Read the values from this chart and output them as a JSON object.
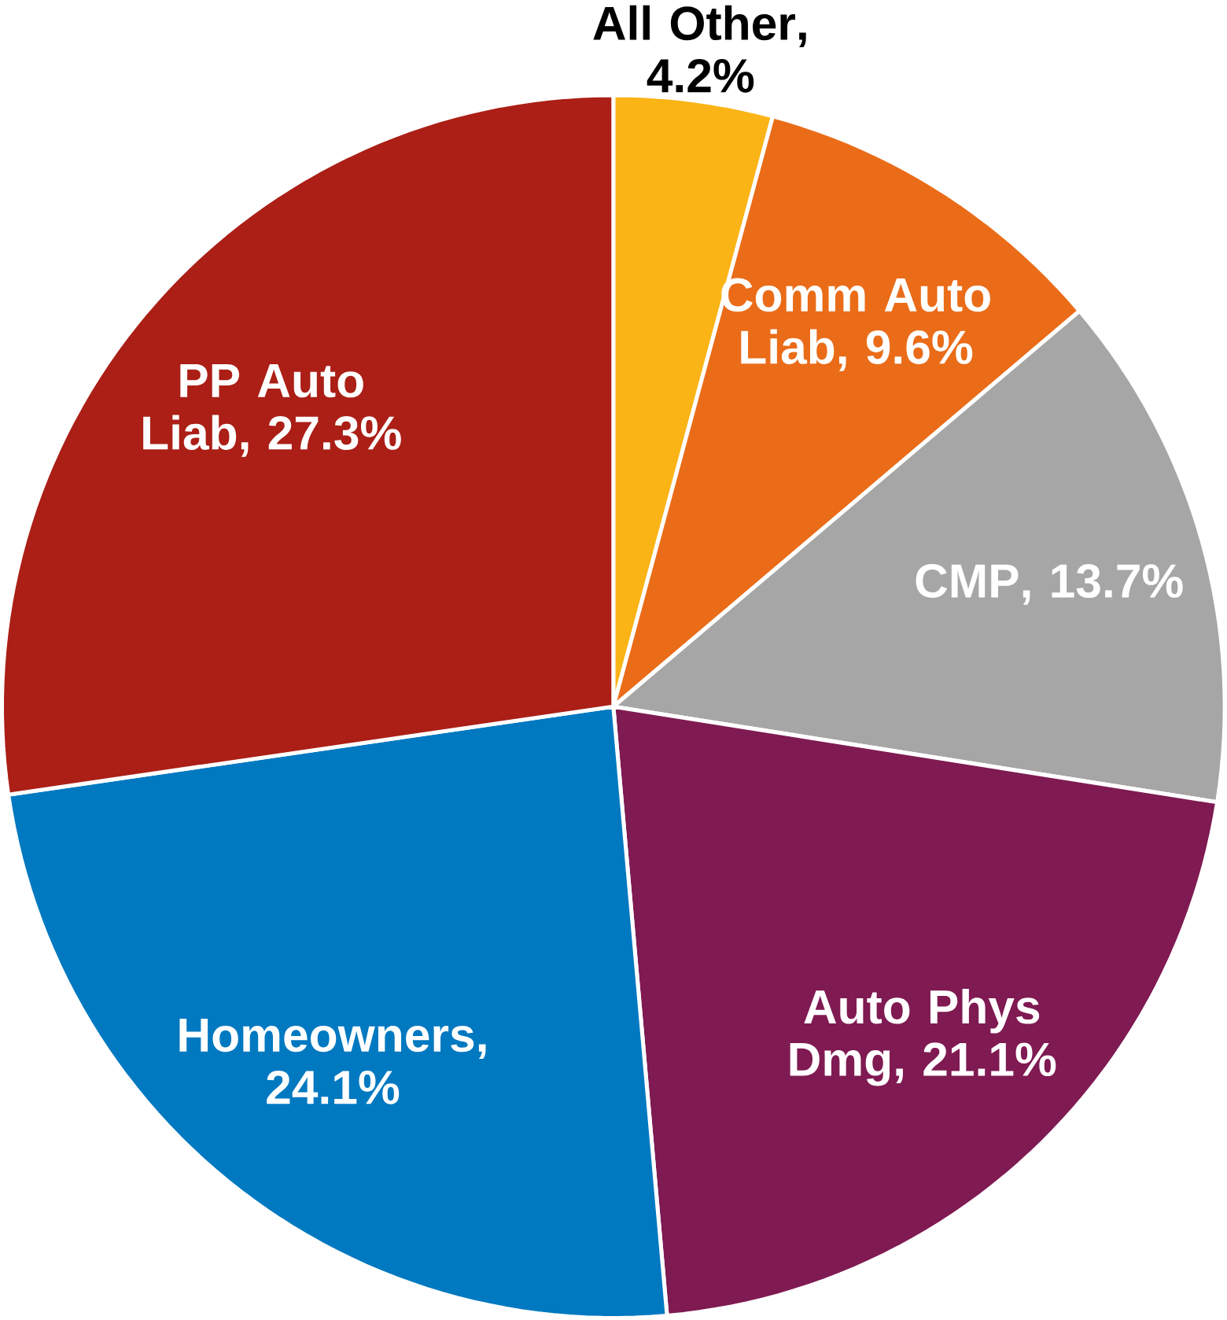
{
  "chart_data": {
    "type": "pie",
    "categories": [
      "All Other",
      "Comm Auto Liab",
      "CMP",
      "Auto Phys Dmg",
      "Homeowners",
      "PP Auto Liab"
    ],
    "values": [
      4.2,
      9.6,
      13.7,
      21.1,
      24.1,
      27.3
    ],
    "value_labels": [
      ", 4.2%",
      ", 9.6%",
      ", 13.7%",
      ", 21.1%",
      ", 24.1%",
      ", 27.3%"
    ],
    "colors": [
      "#fab416",
      "#ea6c18",
      "#a6a6a6",
      "#7f1a52",
      "#0079c1",
      "#ab1f16"
    ]
  }
}
